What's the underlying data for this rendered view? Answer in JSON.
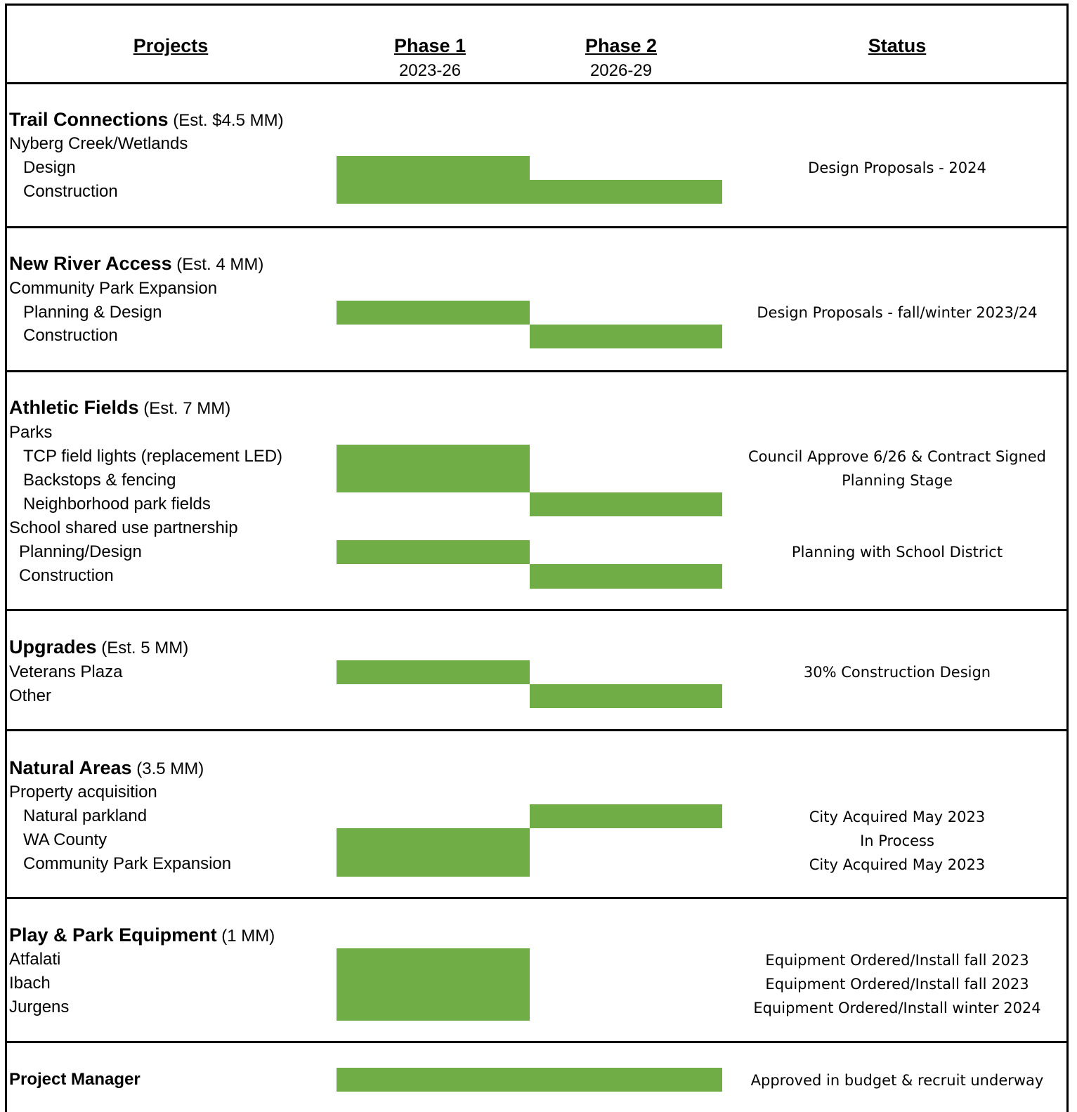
{
  "header": {
    "projects": "Projects",
    "phase1": "Phase 1",
    "phase1_years": "2023-26",
    "phase2": "Phase 2",
    "phase2_years": "2026-29",
    "status": "Status"
  },
  "bar_color": "#70ad47",
  "sections": {
    "trail": {
      "title": "Trail Connections",
      "estimate": " (Est. $4.5 MM)",
      "items": [
        "Nyberg Creek/Wetlands",
        "Design",
        "Construction"
      ],
      "statuses": [
        "Design Proposals - 2024"
      ]
    },
    "river": {
      "title": "New River Access",
      "estimate": " (Est. 4 MM)",
      "items": [
        "Community Park Expansion",
        "Planning & Design",
        "Construction"
      ],
      "statuses": [
        "Design Proposals - fall/winter 2023/24"
      ]
    },
    "athletic": {
      "title": "Athletic Fields",
      "estimate": " (Est. 7 MM)",
      "items": [
        "Parks",
        "TCP field lights (replacement LED)",
        "Backstops & fencing",
        "Neighborhood park fields",
        "School shared use partnership",
        "Planning/Design",
        "Construction"
      ],
      "statuses": [
        "Council Approve 6/26 & Contract Signed",
        "Planning Stage",
        "Planning with School District"
      ]
    },
    "upgrades": {
      "title": "Upgrades",
      "estimate": " (Est. 5 MM)",
      "items": [
        "Veterans Plaza",
        "Other"
      ],
      "statuses": [
        "30% Construction Design"
      ]
    },
    "natural": {
      "title": "Natural Areas",
      "estimate": " (3.5 MM)",
      "items": [
        "Property acquisition",
        "Natural parkland",
        "WA County",
        "Community Park Expansion"
      ],
      "statuses": [
        "City Acquired May 2023",
        "In Process",
        "City Acquired May 2023"
      ]
    },
    "play": {
      "title": "Play & Park Equipment",
      "estimate": " (1 MM)",
      "items": [
        "Atfalati",
        "Ibach",
        "Jurgens"
      ],
      "statuses": [
        "Equipment Ordered/Install fall 2023",
        "Equipment Ordered/Install fall 2023",
        "Equipment Ordered/Install winter 2024"
      ]
    },
    "pm": {
      "title": "Project Manager",
      "statuses": [
        "Approved in budget & recruit underway"
      ]
    }
  }
}
